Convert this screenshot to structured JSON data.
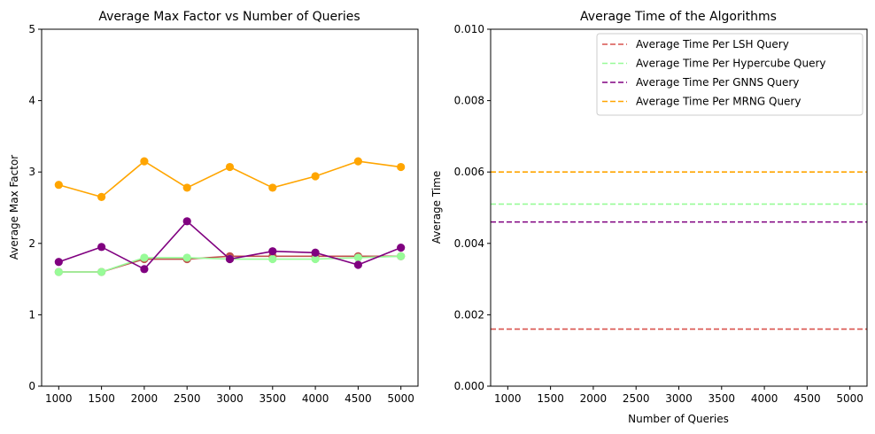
{
  "chart_data": [
    {
      "type": "line",
      "title": "Average Max Factor vs Number of Queries",
      "xlabel": "",
      "ylabel": "Average Max Factor",
      "categories": [
        "1000",
        "1500",
        "2000",
        "2500",
        "3000",
        "3500",
        "4000",
        "4500",
        "5000"
      ],
      "x": [
        1000,
        1500,
        2000,
        2500,
        3000,
        3500,
        4000,
        4500,
        5000
      ],
      "ylim": [
        0,
        5
      ],
      "yticks": [
        "0",
        "1",
        "2",
        "3",
        "4",
        "5"
      ],
      "grid": false,
      "series": [
        {
          "color": "#c0504d",
          "values": [
            1.6,
            1.6,
            1.78,
            1.78,
            1.82,
            1.82,
            1.82,
            1.82,
            1.82
          ]
        },
        {
          "color": "#98fb98",
          "values": [
            1.6,
            1.6,
            1.8,
            1.8,
            1.78,
            1.78,
            1.78,
            1.8,
            1.82
          ]
        },
        {
          "color": "#800080",
          "values": [
            1.74,
            1.95,
            1.64,
            2.31,
            1.78,
            1.89,
            1.87,
            1.7,
            1.94
          ]
        },
        {
          "color": "#ffa500",
          "values": [
            2.82,
            2.65,
            3.15,
            2.78,
            3.07,
            2.78,
            2.94,
            3.15,
            3.07
          ]
        }
      ]
    },
    {
      "type": "line",
      "title": "Average Time of the Algorithms",
      "xlabel": "Number of Queries",
      "ylabel": "Average Time",
      "xlim": [
        800,
        5200
      ],
      "xticks": [
        "1000",
        "1500",
        "2000",
        "2500",
        "3000",
        "3500",
        "4000",
        "4500",
        "5000"
      ],
      "ylim": [
        0,
        0.01
      ],
      "yticks": [
        "0.000",
        "0.002",
        "0.004",
        "0.006",
        "0.008",
        "0.010"
      ],
      "grid": false,
      "legend_position": "top-right",
      "series": [
        {
          "name": "Average Time Per LSH Query",
          "color": "#d9534f",
          "dashed": true,
          "values": [
            0.0016
          ]
        },
        {
          "name": "Average Time Per Hypercube Query",
          "color": "#98fb98",
          "dashed": true,
          "values": [
            0.0051
          ]
        },
        {
          "name": "Average Time Per GNNS Query",
          "color": "#800080",
          "dashed": true,
          "values": [
            0.0046
          ]
        },
        {
          "name": "Average Time Per MRNG Query",
          "color": "#ffa500",
          "dashed": true,
          "values": [
            0.006
          ]
        }
      ]
    }
  ]
}
